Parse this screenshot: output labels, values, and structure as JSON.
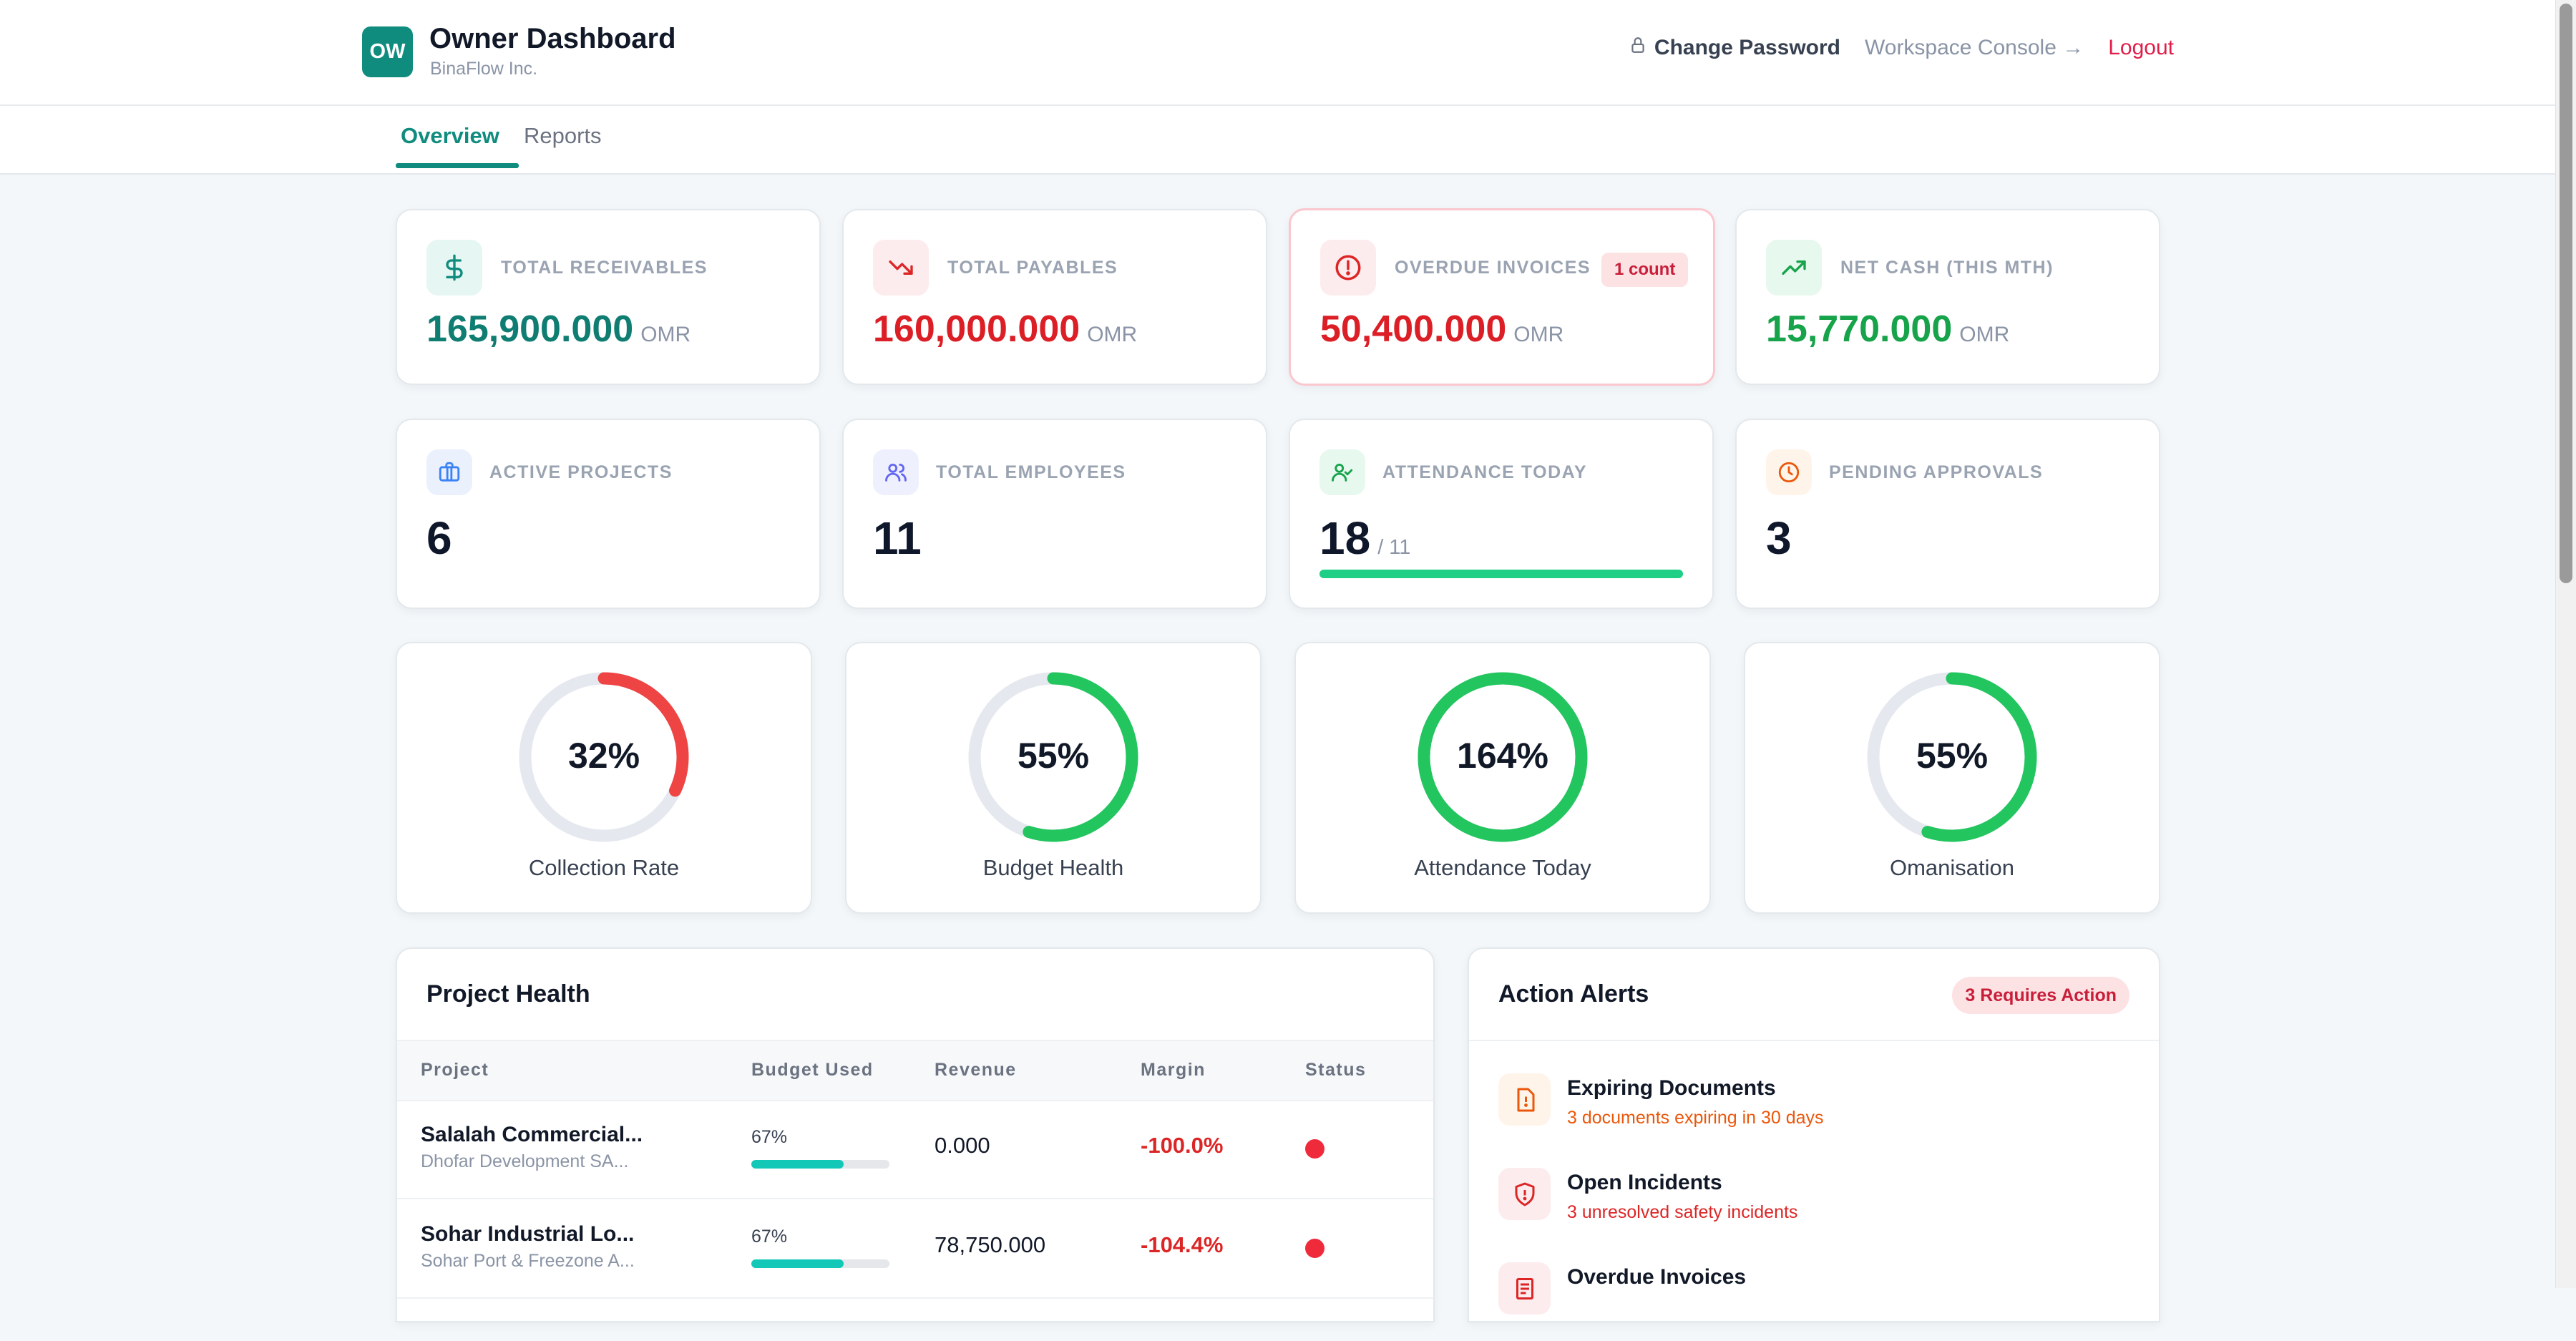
{
  "header": {
    "logo_initials": "OW",
    "title": "Owner Dashboard",
    "subtitle": "BinaFlow Inc.",
    "actions": {
      "change_password": "Change Password",
      "workspace_console": "Workspace Console →",
      "logout": "Logout"
    }
  },
  "tabs": [
    {
      "label": "Overview",
      "active": true
    },
    {
      "label": "Reports",
      "active": false
    }
  ],
  "kpis": [
    {
      "label": "Total Receivables",
      "value": "165,900.000",
      "unit": "OMR",
      "color": "#0f7d71",
      "icon": "dollar-icon"
    },
    {
      "label": "Total Payables",
      "value": "160,000.000",
      "unit": "OMR",
      "color": "#dc1f26",
      "icon": "trending-down-icon"
    },
    {
      "label": "Overdue Invoices",
      "value": "50,400.000",
      "unit": "OMR",
      "color": "#dc1f26",
      "icon": "alert-circle-icon",
      "badge": "1 count"
    },
    {
      "label": "Net Cash (This Mth)",
      "value": "15,770.000",
      "unit": "OMR",
      "color": "#16a34a",
      "icon": "trending-up-icon"
    }
  ],
  "stats": [
    {
      "label": "Active Projects",
      "value": "6",
      "icon": "briefcase-icon"
    },
    {
      "label": "Total Employees",
      "value": "11",
      "icon": "users-icon"
    },
    {
      "label": "Attendance Today",
      "value": "18",
      "sub": "/ 11",
      "icon": "user-check-icon",
      "progress": 1.0
    },
    {
      "label": "Pending Approvals",
      "value": "3",
      "icon": "clock-icon"
    }
  ],
  "gauges": [
    {
      "label": "Collection Rate",
      "value_text": "32%",
      "percent": 32,
      "color": "#ef4444"
    },
    {
      "label": "Budget Health",
      "value_text": "55%",
      "percent": 55,
      "color": "#22c55e"
    },
    {
      "label": "Attendance Today",
      "value_text": "164%",
      "percent": 100,
      "color": "#22c55e"
    },
    {
      "label": "Omanisation",
      "value_text": "55%",
      "percent": 55,
      "color": "#22c55e"
    }
  ],
  "project_health": {
    "title": "Project Health",
    "columns": [
      "Project",
      "Budget Used",
      "Revenue",
      "Margin",
      "Status"
    ],
    "rows": [
      {
        "name": "Salalah Commercial...",
        "client": "Dhofar Development SA...",
        "budget_used": "67%",
        "budget_fraction": 0.67,
        "revenue": "0.000",
        "margin": "-100.0%",
        "status_color": "#ef2b3b"
      },
      {
        "name": "Sohar Industrial Lo...",
        "client": "Sohar Port & Freezone A...",
        "budget_used": "67%",
        "budget_fraction": 0.67,
        "revenue": "78,750.000",
        "margin": "-104.4%",
        "status_color": "#ef2b3b"
      }
    ]
  },
  "action_alerts": {
    "title": "Action Alerts",
    "badge": "3 Requires Action",
    "items": [
      {
        "title": "Expiring Documents",
        "desc": "3 documents expiring in 30 days",
        "icon": "file-alert-icon",
        "color": "#ea580c",
        "bg": "#fff4ea"
      },
      {
        "title": "Open Incidents",
        "desc": "3 unresolved safety incidents",
        "icon": "shield-alert-icon",
        "color": "#dc2626",
        "bg": "#fdecee"
      },
      {
        "title": "Overdue Invoices",
        "desc": "",
        "icon": "invoice-icon",
        "color": "#dc2626",
        "bg": "#fdecee"
      }
    ]
  }
}
